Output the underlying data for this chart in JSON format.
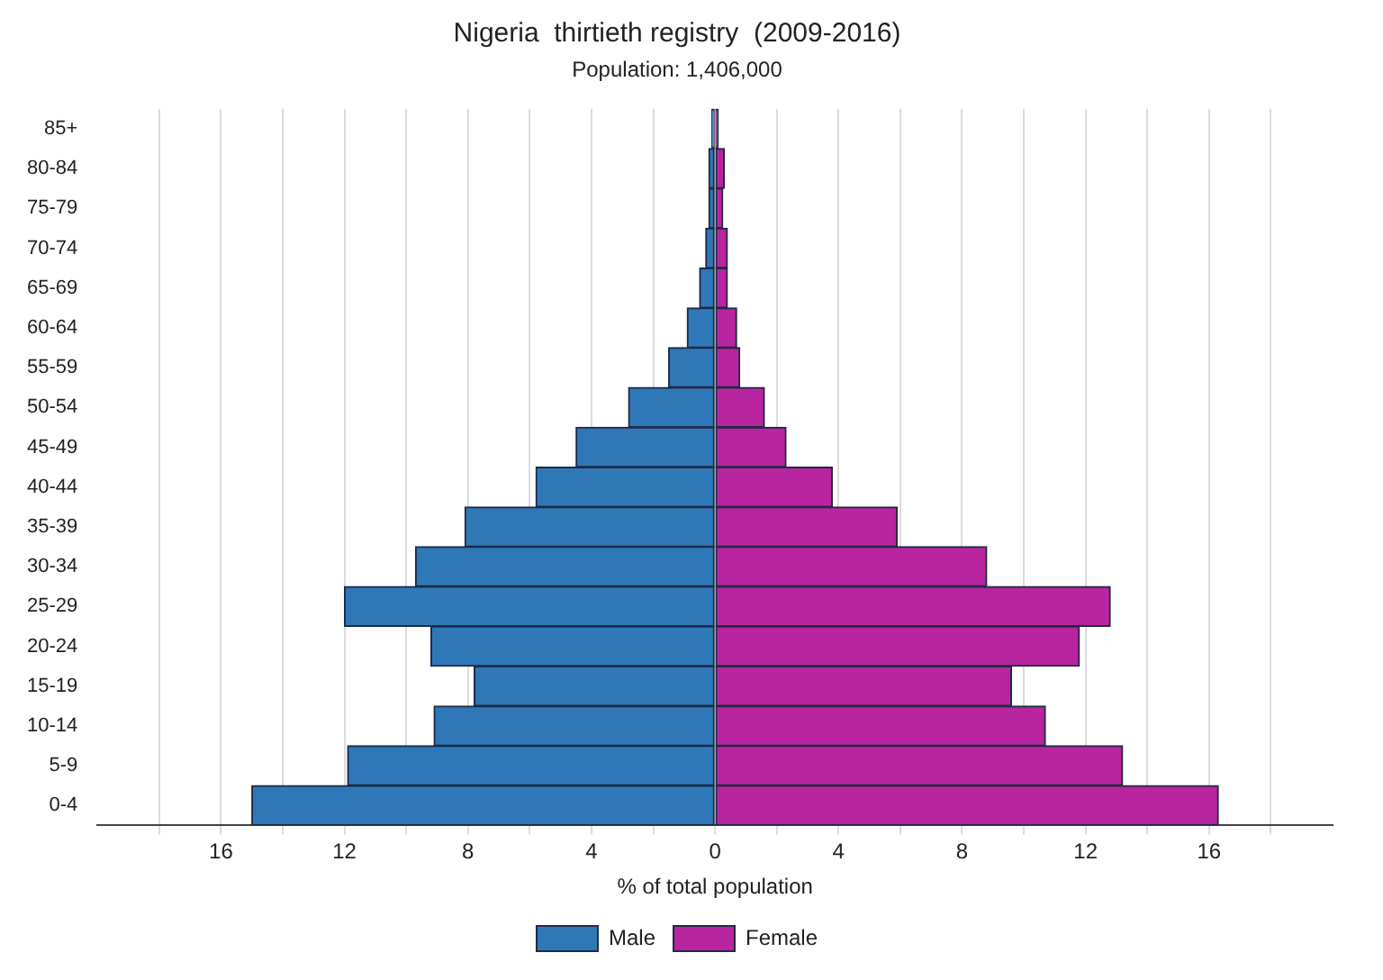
{
  "chart_data": {
    "type": "bar",
    "orientation": "horizontal",
    "stacked": true,
    "title": "Nigeria  thirtieth registry  (2009-2016)",
    "subtitle": "Population: 1,406,000",
    "xlabel": "% of total population",
    "categories": [
      "85+",
      "80-84",
      "75-79",
      "70-74",
      "65-69",
      "60-64",
      "55-59",
      "50-54",
      "45-49",
      "40-44",
      "35-39",
      "30-34",
      "25-29",
      "20-24",
      "15-19",
      "10-14",
      "5-9",
      "0-4"
    ],
    "series": [
      {
        "name": "Male",
        "color": "#2e78b8",
        "values": [
          -0.1,
          -0.2,
          -0.2,
          -0.3,
          -0.5,
          -0.9,
          -1.5,
          -2.8,
          -4.5,
          -5.8,
          -8.1,
          -9.7,
          -12.0,
          -9.2,
          -7.8,
          -9.1,
          -11.9,
          -15.0
        ]
      },
      {
        "name": "Female",
        "color": "#b8259e",
        "values": [
          0.1,
          0.3,
          0.25,
          0.4,
          0.4,
          0.7,
          0.8,
          1.6,
          2.3,
          3.8,
          5.9,
          8.8,
          12.8,
          11.8,
          9.6,
          10.7,
          13.2,
          16.3
        ]
      }
    ],
    "xlim": [
      -20,
      20
    ],
    "xticks": [
      {
        "value": -18,
        "label": null
      },
      {
        "value": -16,
        "label": "16"
      },
      {
        "value": -14,
        "label": null
      },
      {
        "value": -12,
        "label": "12"
      },
      {
        "value": -10,
        "label": null
      },
      {
        "value": -8,
        "label": "8"
      },
      {
        "value": -6,
        "label": null
      },
      {
        "value": -4,
        "label": "4"
      },
      {
        "value": -2,
        "label": null
      },
      0,
      {
        "value": 2,
        "label": null
      },
      {
        "value": 4,
        "label": "4"
      },
      {
        "value": 6,
        "label": null
      },
      {
        "value": 8,
        "label": "8"
      },
      {
        "value": 10,
        "label": null
      },
      {
        "value": 12,
        "label": "12"
      },
      {
        "value": 14,
        "label": null
      },
      {
        "value": 16,
        "label": "16"
      },
      {
        "value": 18,
        "label": null
      }
    ],
    "grid": "x",
    "legend": "bottom"
  }
}
